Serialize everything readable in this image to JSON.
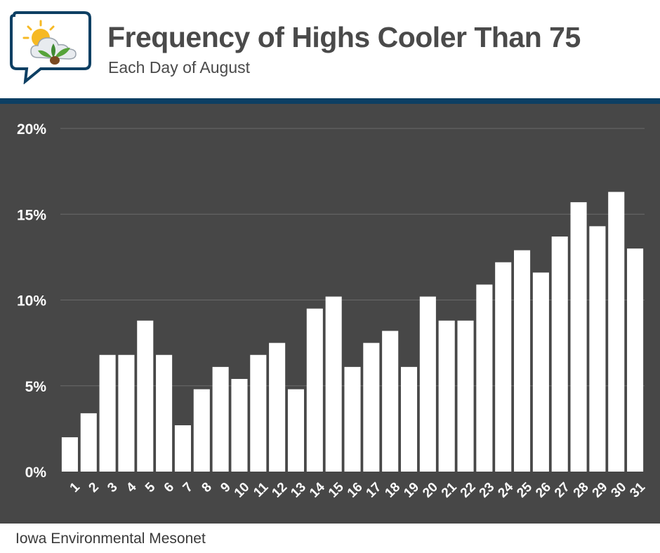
{
  "header": {
    "title": "Frequency of Highs Cooler Than 75",
    "subtitle": "Each Day of August"
  },
  "footer": {
    "source": "Iowa Environmental Mesonet"
  },
  "colors": {
    "header_band": "#0d3f63",
    "plot_background": "#474747",
    "bar": "#ffffff",
    "grid": "#6a6a6a",
    "title_text": "#4a4a4a"
  },
  "logo": {
    "icon": "sun-cloud-leaf-speech-bubble-icon"
  },
  "chart_data": {
    "type": "bar",
    "categories": [
      "1",
      "2",
      "3",
      "4",
      "5",
      "6",
      "7",
      "8",
      "9",
      "10",
      "11",
      "12",
      "13",
      "14",
      "15",
      "16",
      "17",
      "18",
      "19",
      "20",
      "21",
      "22",
      "23",
      "24",
      "25",
      "26",
      "27",
      "28",
      "29",
      "30",
      "31"
    ],
    "values": [
      2.0,
      3.4,
      6.8,
      6.8,
      8.8,
      6.8,
      2.7,
      4.8,
      6.1,
      5.4,
      6.8,
      7.5,
      4.8,
      9.5,
      10.2,
      6.1,
      7.5,
      8.2,
      6.1,
      10.2,
      8.8,
      8.8,
      10.9,
      12.2,
      12.9,
      11.6,
      13.7,
      15.7,
      14.3,
      16.3,
      13.0
    ],
    "ylim": [
      0,
      20
    ],
    "yticks": [
      0,
      5,
      10,
      15,
      20
    ],
    "ytick_labels": [
      "0%",
      "5%",
      "10%",
      "15%",
      "20%"
    ],
    "grid": true,
    "xlabel": "",
    "ylabel": ""
  }
}
